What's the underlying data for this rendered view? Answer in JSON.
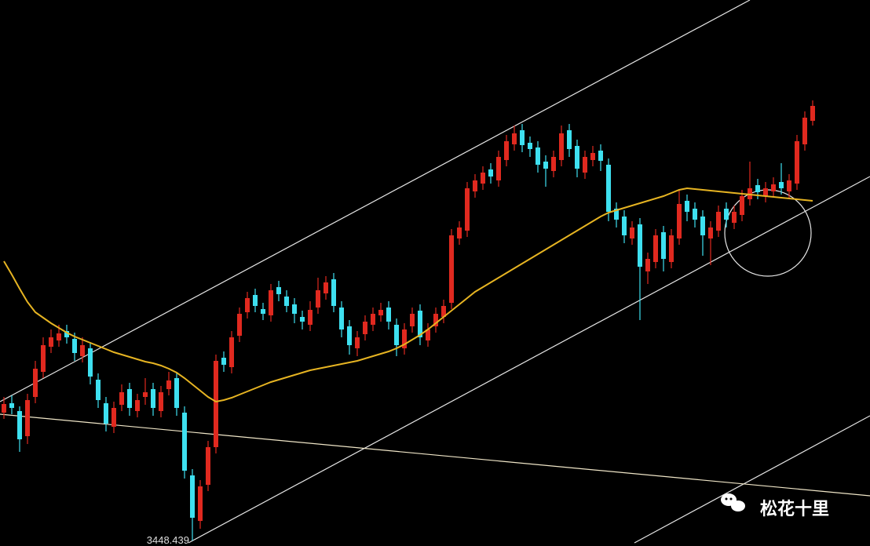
{
  "chart_data": {
    "type": "candlestick",
    "ylim": [
      3445,
      3793
    ],
    "up_color": "#e0291f",
    "down_color": "#3ee0f0",
    "ma_color": "#e6b422",
    "open": [
      3530,
      3536,
      3531,
      3515,
      3540,
      3556,
      3572,
      3576,
      3582,
      3577,
      3566,
      3571,
      3551,
      3536,
      3521,
      3535,
      3545,
      3531,
      3540,
      3545,
      3531,
      3545,
      3552,
      3530,
      3490,
      3461,
      3484,
      3508,
      3565,
      3559,
      3579,
      3594,
      3605,
      3596,
      3592,
      3610,
      3604,
      3599,
      3591,
      3586,
      3597,
      3606,
      3615,
      3597,
      3585,
      3571,
      3580,
      3586,
      3592,
      3597,
      3586,
      3571,
      3585,
      3595,
      3576,
      3585,
      3591,
      3600,
      3641,
      3646,
      3671,
      3676,
      3685,
      3678,
      3691,
      3701,
      3710,
      3702,
      3699,
      3690,
      3684,
      3691,
      3710,
      3700,
      3683,
      3691,
      3697,
      3688,
      3660,
      3655,
      3641,
      3650,
      3620,
      3626,
      3645,
      3626,
      3641,
      3665,
      3660,
      3655,
      3641,
      3646,
      3660,
      3651,
      3656,
      3666,
      3675,
      3668,
      3671,
      3677,
      3671,
      3676,
      3701,
      3716
    ],
    "high": [
      3540,
      3541,
      3534,
      3542,
      3563,
      3578,
      3583,
      3586,
      3586,
      3581,
      3578,
      3575,
      3555,
      3540,
      3537,
      3548,
      3549,
      3542,
      3552,
      3549,
      3547,
      3556,
      3556,
      3534,
      3494,
      3487,
      3512,
      3567,
      3569,
      3582,
      3597,
      3607,
      3609,
      3600,
      3612,
      3614,
      3608,
      3603,
      3595,
      3601,
      3616,
      3617,
      3619,
      3601,
      3589,
      3582,
      3592,
      3597,
      3600,
      3601,
      3590,
      3587,
      3597,
      3599,
      3587,
      3597,
      3602,
      3647,
      3652,
      3677,
      3682,
      3687,
      3689,
      3697,
      3707,
      3713,
      3714,
      3706,
      3703,
      3694,
      3697,
      3713,
      3714,
      3704,
      3697,
      3700,
      3701,
      3692,
      3664,
      3659,
      3652,
      3654,
      3632,
      3647,
      3649,
      3647,
      3672,
      3669,
      3664,
      3659,
      3652,
      3662,
      3664,
      3662,
      3672,
      3690,
      3679,
      3677,
      3680,
      3689,
      3682,
      3707,
      3722,
      3729
    ],
    "low": [
      3526,
      3529,
      3505,
      3510,
      3536,
      3552,
      3568,
      3572,
      3574,
      3563,
      3562,
      3548,
      3533,
      3518,
      3517,
      3531,
      3528,
      3527,
      3535,
      3528,
      3527,
      3541,
      3528,
      3488,
      3448.439,
      3456,
      3480,
      3504,
      3556,
      3555,
      3575,
      3590,
      3594,
      3589,
      3588,
      3601,
      3594,
      3587,
      3583,
      3582,
      3593,
      3602,
      3594,
      3578,
      3567,
      3566,
      3576,
      3582,
      3588,
      3583,
      3566,
      3567,
      3581,
      3573,
      3572,
      3581,
      3587,
      3596,
      3637,
      3642,
      3667,
      3672,
      3676,
      3674,
      3687,
      3697,
      3696,
      3693,
      3683,
      3674,
      3680,
      3687,
      3693,
      3680,
      3679,
      3687,
      3684,
      3652,
      3648,
      3638,
      3637,
      3589,
      3612,
      3622,
      3620,
      3622,
      3637,
      3652,
      3648,
      3630,
      3624,
      3642,
      3648,
      3647,
      3652,
      3662,
      3666,
      3664,
      3667,
      3669,
      3667,
      3672,
      3697,
      3713
    ],
    "close": [
      3535.5,
      3533,
      3513,
      3538,
      3558,
      3573,
      3578,
      3580.5,
      3578,
      3568,
      3573,
      3553,
      3538,
      3523,
      3533,
      3543,
      3533,
      3538,
      3543,
      3533,
      3543,
      3550.5,
      3533,
      3493,
      3463,
      3483,
      3508,
      3563,
      3560.5,
      3578,
      3593,
      3603,
      3598,
      3593,
      3608,
      3605.5,
      3598,
      3593,
      3588,
      3595.5,
      3608,
      3613,
      3598,
      3583,
      3573,
      3578,
      3588,
      3593,
      3595.5,
      3588,
      3573,
      3583,
      3593,
      3578,
      3583,
      3593,
      3598,
      3643,
      3648,
      3673,
      3678,
      3683,
      3680.5,
      3693,
      3703,
      3708,
      3700.5,
      3698,
      3688,
      3685.5,
      3693,
      3708,
      3698,
      3685.5,
      3693,
      3695.5,
      3690.5,
      3658,
      3653,
      3643,
      3648,
      3623,
      3628,
      3643,
      3628,
      3643,
      3663,
      3658,
      3653,
      3643,
      3648,
      3658,
      3653,
      3658,
      3668,
      3673,
      3670.5,
      3673,
      3675.5,
      3673,
      3678,
      3703,
      3718,
      3725.5
    ],
    "ma": [
      3626.5,
      3618,
      3609,
      3600.5,
      3594,
      3590.5,
      3587,
      3584,
      3581,
      3578.5,
      3576.5,
      3574.5,
      3572.5,
      3570.5,
      3568.5,
      3567,
      3565.5,
      3564,
      3562.5,
      3561.5,
      3560,
      3558,
      3555.5,
      3552,
      3548,
      3544,
      3540,
      3537,
      3538,
      3539.5,
      3541.5,
      3543.5,
      3545.5,
      3547.5,
      3549.5,
      3551,
      3552.5,
      3554,
      3555.5,
      3557,
      3558,
      3559,
      3560,
      3561,
      3562,
      3563,
      3564.5,
      3566,
      3567.5,
      3569,
      3571,
      3573.5,
      3576.5,
      3579.5,
      3583,
      3587,
      3591,
      3595,
      3599,
      3603,
      3607,
      3610,
      3613,
      3616,
      3619,
      3622,
      3625,
      3628,
      3631,
      3634,
      3637,
      3640,
      3643,
      3646,
      3649,
      3652,
      3655,
      3657.5,
      3659,
      3660.5,
      3662,
      3663.5,
      3665,
      3666.5,
      3668,
      3670,
      3672,
      3673,
      3672.5,
      3672,
      3671.5,
      3671,
      3670.5,
      3670,
      3669.5,
      3669,
      3668.5,
      3668,
      3667.5,
      3667,
      3666.5,
      3666,
      3665.5,
      3665
    ]
  },
  "watermark": "松花十里"
}
